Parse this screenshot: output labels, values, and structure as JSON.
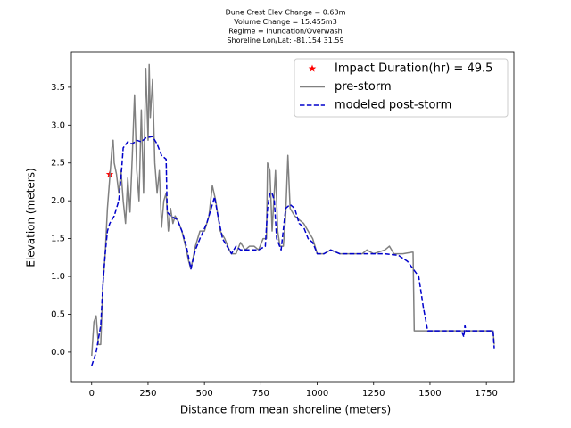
{
  "chart_data": {
    "type": "line",
    "title": [
      "Dune Crest Elev Change = 0.63m",
      "Volume Change = 15.455m3",
      "Regime = Inundation/Overwash",
      "Shoreline Lon/Lat: -81.154 31.59"
    ],
    "xlabel": "Distance from mean shoreline (meters)",
    "ylabel": "Elevation (meters)",
    "xlim": [
      -90,
      1872
    ],
    "ylim": [
      -0.39,
      3.97
    ],
    "xticks": [
      0,
      250,
      500,
      750,
      1000,
      1250,
      1500,
      1750
    ],
    "yticks": [
      {
        "value": 0,
        "label": "0.0"
      },
      0.5,
      {
        "value": 1,
        "label": "1.0"
      },
      1.5,
      {
        "value": 2,
        "label": "2.0"
      },
      2.5,
      {
        "value": 3,
        "label": "3.0"
      },
      3.5
    ],
    "legend": "upper right",
    "series": [
      {
        "name": "Impact Duration(hr) = 49.5",
        "color": "#ff0000",
        "style": "star",
        "x": [
          80
        ],
        "y": [
          2.35
        ]
      },
      {
        "name": "pre-storm",
        "color": "#808080",
        "style": "solid",
        "x": [
          0,
          10,
          20,
          30,
          40,
          50,
          60,
          70,
          80,
          90,
          95,
          100,
          110,
          120,
          130,
          140,
          150,
          160,
          170,
          180,
          190,
          200,
          210,
          220,
          230,
          240,
          250,
          255,
          260,
          270,
          280,
          290,
          300,
          310,
          320,
          330,
          340,
          350,
          360,
          370,
          380,
          400,
          420,
          430,
          440,
          460,
          480,
          500,
          520,
          535,
          550,
          560,
          570,
          590,
          610,
          620,
          640,
          660,
          680,
          700,
          720,
          740,
          760,
          775,
          780,
          790,
          800,
          815,
          825,
          835,
          850,
          860,
          870,
          880,
          900,
          920,
          940,
          960,
          980,
          1000,
          1030,
          1060,
          1100,
          1150,
          1200,
          1220,
          1250,
          1300,
          1320,
          1340,
          1380,
          1420,
          1425,
          1430,
          1500,
          1600,
          1700,
          1780,
          1785
        ],
        "y": [
          -0.05,
          0.4,
          0.48,
          0.1,
          0.1,
          0.9,
          1.3,
          1.9,
          2.3,
          2.7,
          2.8,
          2.5,
          2.35,
          2.1,
          2.4,
          2.0,
          1.7,
          2.3,
          1.85,
          2.6,
          3.4,
          2.4,
          2.0,
          3.2,
          2.1,
          3.75,
          2.8,
          3.8,
          3.1,
          3.6,
          2.5,
          2.1,
          2.4,
          1.65,
          2.0,
          2.1,
          1.6,
          1.9,
          1.7,
          1.8,
          1.75,
          1.6,
          1.35,
          1.2,
          1.1,
          1.4,
          1.6,
          1.6,
          1.8,
          2.2,
          2.0,
          1.8,
          1.6,
          1.5,
          1.35,
          1.3,
          1.3,
          1.45,
          1.35,
          1.4,
          1.4,
          1.35,
          1.5,
          1.5,
          2.5,
          2.4,
          1.6,
          2.4,
          1.6,
          1.4,
          1.4,
          1.8,
          2.6,
          1.9,
          1.8,
          1.75,
          1.7,
          1.6,
          1.5,
          1.3,
          1.3,
          1.35,
          1.3,
          1.3,
          1.3,
          1.35,
          1.3,
          1.35,
          1.4,
          1.3,
          1.3,
          1.32,
          1.32,
          0.28,
          0.28,
          0.28,
          0.28,
          0.28,
          0.1
        ]
      },
      {
        "name": "modeled post-storm",
        "color": "#0000cc",
        "style": "dashed",
        "x": [
          0,
          20,
          40,
          50,
          60,
          70,
          80,
          100,
          120,
          130,
          140,
          160,
          180,
          200,
          220,
          240,
          270,
          290,
          310,
          330,
          335,
          350,
          380,
          400,
          420,
          440,
          460,
          480,
          510,
          530,
          545,
          560,
          580,
          600,
          620,
          640,
          660,
          700,
          740,
          770,
          780,
          790,
          800,
          810,
          820,
          840,
          860,
          880,
          900,
          920,
          940,
          960,
          980,
          1000,
          1030,
          1060,
          1100,
          1200,
          1300,
          1360,
          1400,
          1430,
          1450,
          1470,
          1490,
          1640,
          1650,
          1655,
          1660,
          1780,
          1785
        ],
        "y": [
          -0.18,
          0,
          0.35,
          0.9,
          1.3,
          1.6,
          1.7,
          1.8,
          2.0,
          2.3,
          2.7,
          2.78,
          2.75,
          2.8,
          2.78,
          2.83,
          2.85,
          2.75,
          2.6,
          2.55,
          1.85,
          1.8,
          1.75,
          1.6,
          1.4,
          1.1,
          1.35,
          1.5,
          1.7,
          1.9,
          2.05,
          1.8,
          1.5,
          1.4,
          1.3,
          1.4,
          1.35,
          1.35,
          1.35,
          1.4,
          1.9,
          2.1,
          2.1,
          2.0,
          1.5,
          1.35,
          1.9,
          1.95,
          1.9,
          1.7,
          1.65,
          1.5,
          1.45,
          1.3,
          1.3,
          1.35,
          1.3,
          1.3,
          1.3,
          1.28,
          1.2,
          1.08,
          1.0,
          0.6,
          0.28,
          0.28,
          0.2,
          0.35,
          0.28,
          0.28,
          0.05
        ]
      }
    ]
  }
}
